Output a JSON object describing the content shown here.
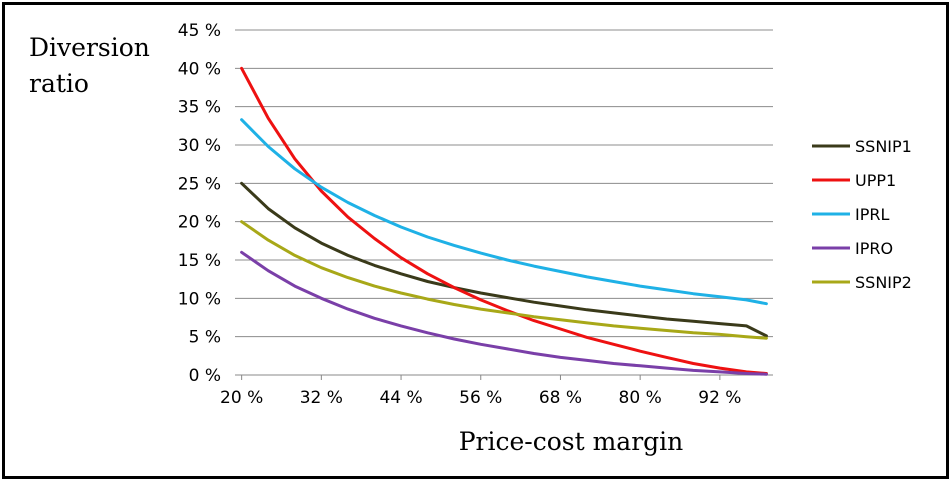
{
  "chart_data": {
    "type": "line",
    "title": "",
    "xlabel": "Price-cost margin",
    "ylabel_lines": [
      "Diversion",
      "ratio"
    ],
    "x_tick_labels": [
      "20 %",
      "32 %",
      "44 %",
      "56 %",
      "68 %",
      "80 %",
      "92 %"
    ],
    "x_tick_values": [
      20,
      32,
      44,
      56,
      68,
      80,
      92
    ],
    "y_tick_labels": [
      "0 %",
      "5 %",
      "10 %",
      "15 %",
      "20 %",
      "25 %",
      "30 %",
      "35 %",
      "40 %",
      "45 %"
    ],
    "y_tick_values": [
      0,
      5,
      10,
      15,
      20,
      25,
      30,
      35,
      40,
      45
    ],
    "xlim": [
      19,
      100
    ],
    "ylim": [
      0,
      45
    ],
    "grid": "horizontal",
    "legend_position": "right",
    "x": [
      20,
      24,
      28,
      32,
      36,
      40,
      44,
      48,
      52,
      56,
      60,
      64,
      68,
      72,
      76,
      80,
      84,
      88,
      92,
      96,
      99
    ],
    "series": [
      {
        "name": "SSNIP1",
        "color": "#3a3a1a",
        "values": [
          25.0,
          21.7,
          19.2,
          17.2,
          15.6,
          14.3,
          13.2,
          12.2,
          11.4,
          10.7,
          10.1,
          9.5,
          9.0,
          8.5,
          8.1,
          7.7,
          7.3,
          7.0,
          6.7,
          6.4,
          5.1
        ]
      },
      {
        "name": "UPP1",
        "color": "#ee1111",
        "values": [
          40.0,
          33.5,
          28.2,
          24.0,
          20.6,
          17.8,
          15.3,
          13.2,
          11.4,
          9.8,
          8.4,
          7.1,
          6.0,
          4.9,
          4.0,
          3.1,
          2.3,
          1.5,
          0.9,
          0.4,
          0.2
        ]
      },
      {
        "name": "IPRL",
        "color": "#1fb1e6",
        "values": [
          33.3,
          29.8,
          26.9,
          24.5,
          22.5,
          20.8,
          19.3,
          18.0,
          16.9,
          15.9,
          15.0,
          14.2,
          13.5,
          12.8,
          12.2,
          11.6,
          11.1,
          10.6,
          10.2,
          9.8,
          9.3
        ]
      },
      {
        "name": "IPRO",
        "color": "#7a3fa8",
        "values": [
          16.0,
          13.6,
          11.6,
          10.0,
          8.6,
          7.4,
          6.4,
          5.5,
          4.7,
          4.0,
          3.4,
          2.8,
          2.3,
          1.9,
          1.5,
          1.2,
          0.9,
          0.6,
          0.4,
          0.2,
          0.1
        ]
      },
      {
        "name": "SSNIP2",
        "color": "#a8a818",
        "values": [
          20.0,
          17.6,
          15.6,
          14.0,
          12.7,
          11.6,
          10.7,
          9.9,
          9.2,
          8.6,
          8.1,
          7.6,
          7.2,
          6.8,
          6.4,
          6.1,
          5.8,
          5.5,
          5.3,
          5.0,
          4.8
        ]
      }
    ]
  }
}
